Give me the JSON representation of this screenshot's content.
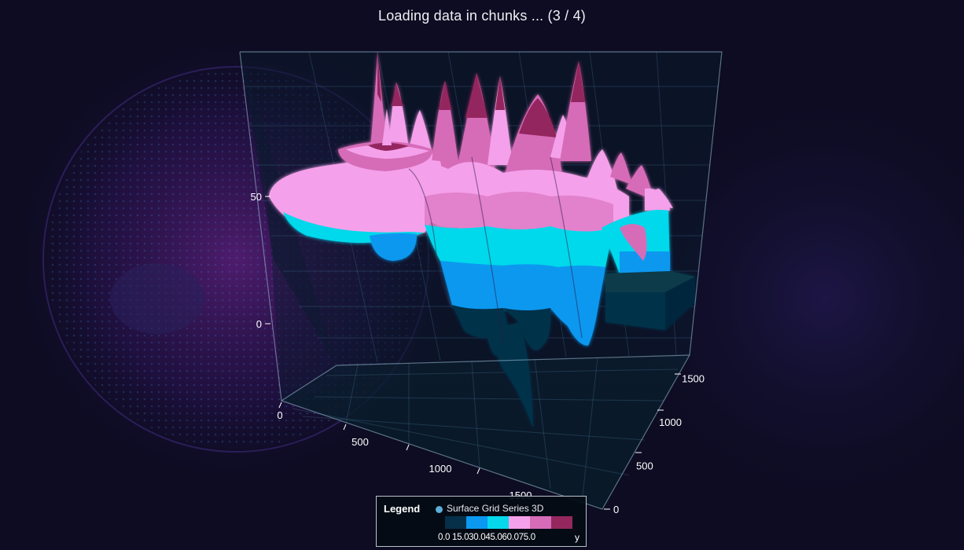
{
  "title": "Loading data in chunks ... (3 / 4)",
  "colors": {
    "background": "#0d0c22",
    "palette": [
      "#06304a",
      "#0a98f0",
      "#06d8ec",
      "#f5a0ea",
      "#d66cb8",
      "#94285e"
    ]
  },
  "legend": {
    "title": "Legend",
    "series_name": "Surface Grid Series 3D",
    "marker_color": "#5aaed8",
    "tick_labels": "0.0 15.030.045.060.075.0",
    "axis_name": "y"
  },
  "chart_data": {
    "type": "surface-3d",
    "series": [
      {
        "name": "Surface Grid Series 3D"
      }
    ],
    "x_axis": {
      "ticks": [
        0,
        500,
        1000,
        1500
      ],
      "range": [
        0,
        2000
      ]
    },
    "y_axis": {
      "ticks": [
        0,
        50
      ],
      "range": [
        -40,
        100
      ]
    },
    "z_axis": {
      "ticks": [
        0,
        500,
        1000,
        1500
      ],
      "range": [
        0,
        1700
      ]
    },
    "color_scale": {
      "min": 0,
      "max": 90,
      "steps": [
        0,
        15,
        30,
        45,
        60,
        75
      ]
    },
    "grid": true,
    "legend_placement": "bottom-center"
  }
}
